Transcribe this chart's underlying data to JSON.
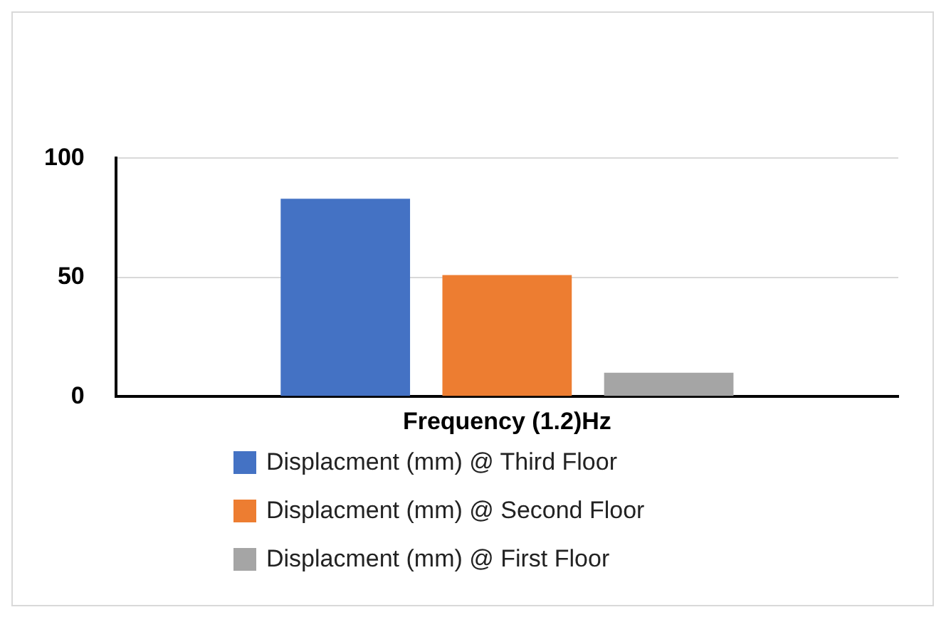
{
  "chart_data": {
    "type": "bar",
    "xlabel": "Frequency (1.2)Hz",
    "categories": [
      null
    ],
    "series": [
      {
        "name": "Displacment (mm) @ Third Floor",
        "color": "#4472c4",
        "values": [
          83
        ]
      },
      {
        "name": "Displacment (mm) @ Second Floor",
        "color": "#ed7d31",
        "values": [
          51
        ]
      },
      {
        "name": "Displacment (mm) @ First Floor",
        "color": "#a5a5a5",
        "values": [
          10
        ]
      }
    ],
    "ylim": [
      0,
      100
    ],
    "yticks": [
      0,
      50,
      100
    ],
    "grid": "y",
    "legend": "bottom"
  }
}
